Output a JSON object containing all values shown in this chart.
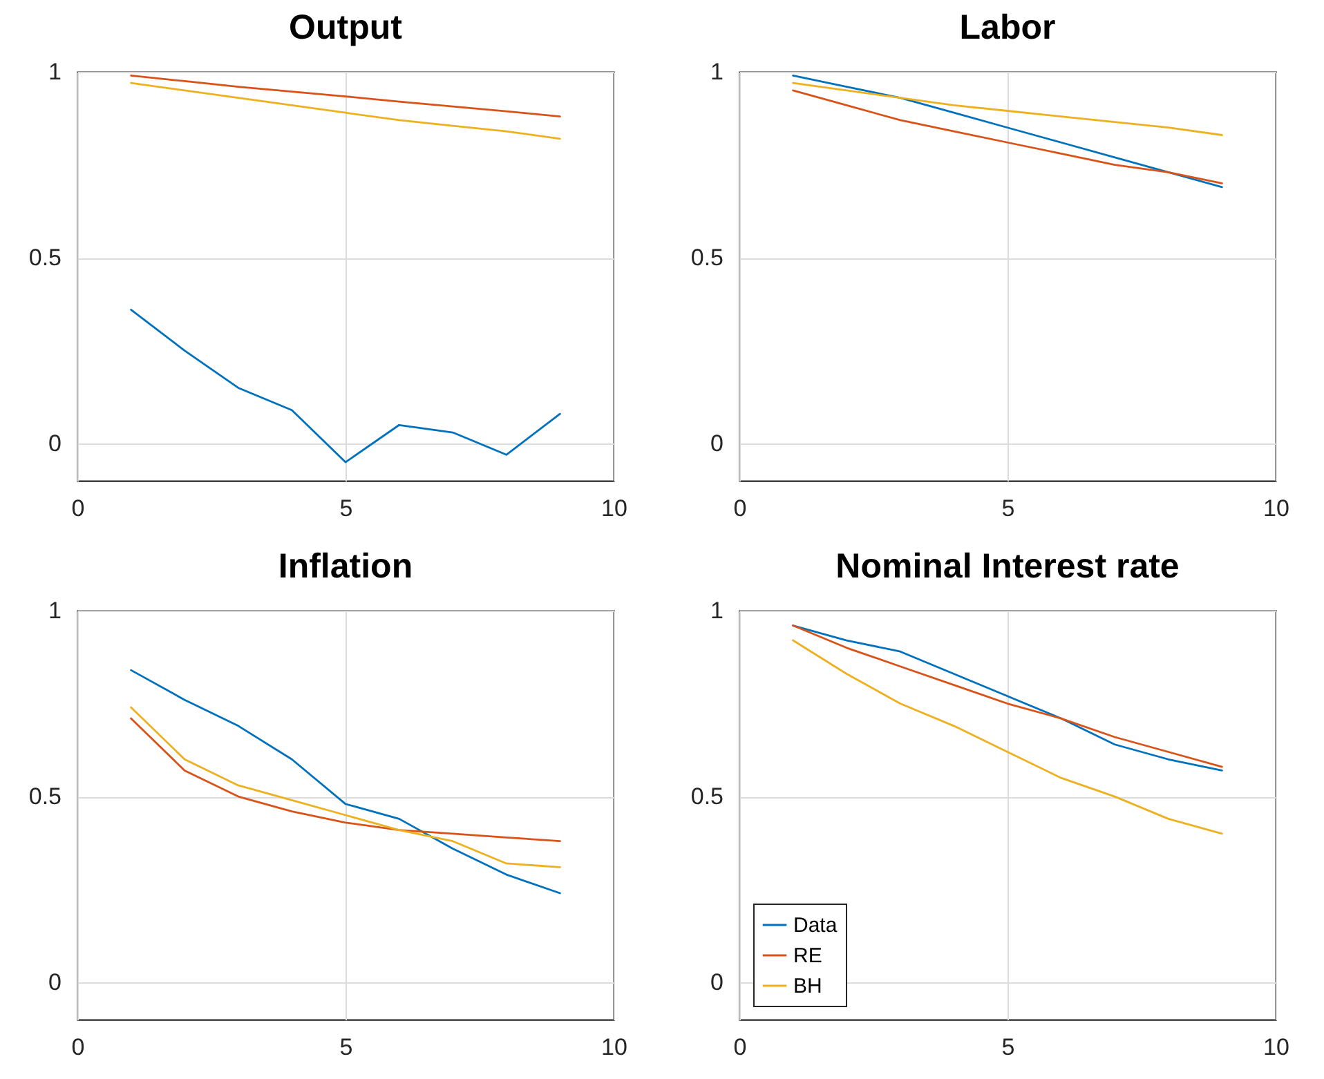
{
  "chart_data": [
    {
      "type": "line",
      "title": "Output",
      "x": [
        1,
        2,
        3,
        4,
        5,
        6,
        7,
        8,
        9
      ],
      "xlim": [
        0,
        10
      ],
      "ylim": [
        -0.1,
        1
      ],
      "xticks": [
        0,
        5,
        10
      ],
      "yticks": [
        0,
        0.5,
        1
      ],
      "grid": true,
      "legend": false,
      "series": [
        {
          "color": "#0072bd",
          "values": [
            0.36,
            0.25,
            0.15,
            0.09,
            -0.05,
            0.05,
            0.03,
            -0.03,
            0.08
          ]
        },
        {
          "color": "#d95319",
          "values": [
            0.99,
            0.975,
            0.96,
            0.947,
            0.934,
            0.92,
            0.907,
            0.894,
            0.88
          ]
        },
        {
          "color": "#edb120",
          "values": [
            0.97,
            0.95,
            0.93,
            0.91,
            0.89,
            0.87,
            0.855,
            0.84,
            0.82
          ]
        }
      ]
    },
    {
      "type": "line",
      "title": "Labor",
      "x": [
        1,
        2,
        3,
        4,
        5,
        6,
        7,
        8,
        9
      ],
      "xlim": [
        0,
        10
      ],
      "ylim": [
        -0.1,
        1
      ],
      "xticks": [
        0,
        5,
        10
      ],
      "yticks": [
        0,
        0.5,
        1
      ],
      "grid": true,
      "legend": false,
      "series": [
        {
          "color": "#0072bd",
          "values": [
            0.99,
            0.96,
            0.93,
            0.89,
            0.85,
            0.81,
            0.77,
            0.73,
            0.69
          ]
        },
        {
          "color": "#d95319",
          "values": [
            0.95,
            0.91,
            0.87,
            0.84,
            0.81,
            0.78,
            0.75,
            0.73,
            0.7
          ]
        },
        {
          "color": "#edb120",
          "values": [
            0.97,
            0.95,
            0.93,
            0.91,
            0.895,
            0.88,
            0.865,
            0.85,
            0.83
          ]
        }
      ]
    },
    {
      "type": "line",
      "title": "Inflation",
      "x": [
        1,
        2,
        3,
        4,
        5,
        6,
        7,
        8,
        9
      ],
      "xlim": [
        0,
        10
      ],
      "ylim": [
        -0.1,
        1
      ],
      "xticks": [
        0,
        5,
        10
      ],
      "yticks": [
        0,
        0.5,
        1
      ],
      "grid": true,
      "legend": false,
      "series": [
        {
          "color": "#0072bd",
          "values": [
            0.84,
            0.76,
            0.69,
            0.6,
            0.48,
            0.44,
            0.36,
            0.29,
            0.24
          ]
        },
        {
          "color": "#d95319",
          "values": [
            0.71,
            0.57,
            0.5,
            0.46,
            0.43,
            0.41,
            0.4,
            0.39,
            0.38
          ]
        },
        {
          "color": "#edb120",
          "values": [
            0.74,
            0.6,
            0.53,
            0.49,
            0.45,
            0.41,
            0.38,
            0.32,
            0.31
          ]
        }
      ]
    },
    {
      "type": "line",
      "title": "Nominal Interest rate",
      "x": [
        1,
        2,
        3,
        4,
        5,
        6,
        7,
        8,
        9
      ],
      "xlim": [
        0,
        10
      ],
      "ylim": [
        -0.1,
        1
      ],
      "xticks": [
        0,
        5,
        10
      ],
      "yticks": [
        0,
        0.5,
        1
      ],
      "grid": true,
      "legend": "bottom left",
      "series": [
        {
          "name": "Data",
          "color": "#0072bd",
          "values": [
            0.96,
            0.92,
            0.89,
            0.83,
            0.77,
            0.71,
            0.64,
            0.6,
            0.57
          ]
        },
        {
          "name": "RE",
          "color": "#d95319",
          "values": [
            0.96,
            0.9,
            0.85,
            0.8,
            0.75,
            0.71,
            0.66,
            0.62,
            0.58
          ]
        },
        {
          "name": "BH",
          "color": "#edb120",
          "values": [
            0.92,
            0.83,
            0.75,
            0.69,
            0.62,
            0.55,
            0.5,
            0.44,
            0.4
          ]
        }
      ]
    }
  ]
}
